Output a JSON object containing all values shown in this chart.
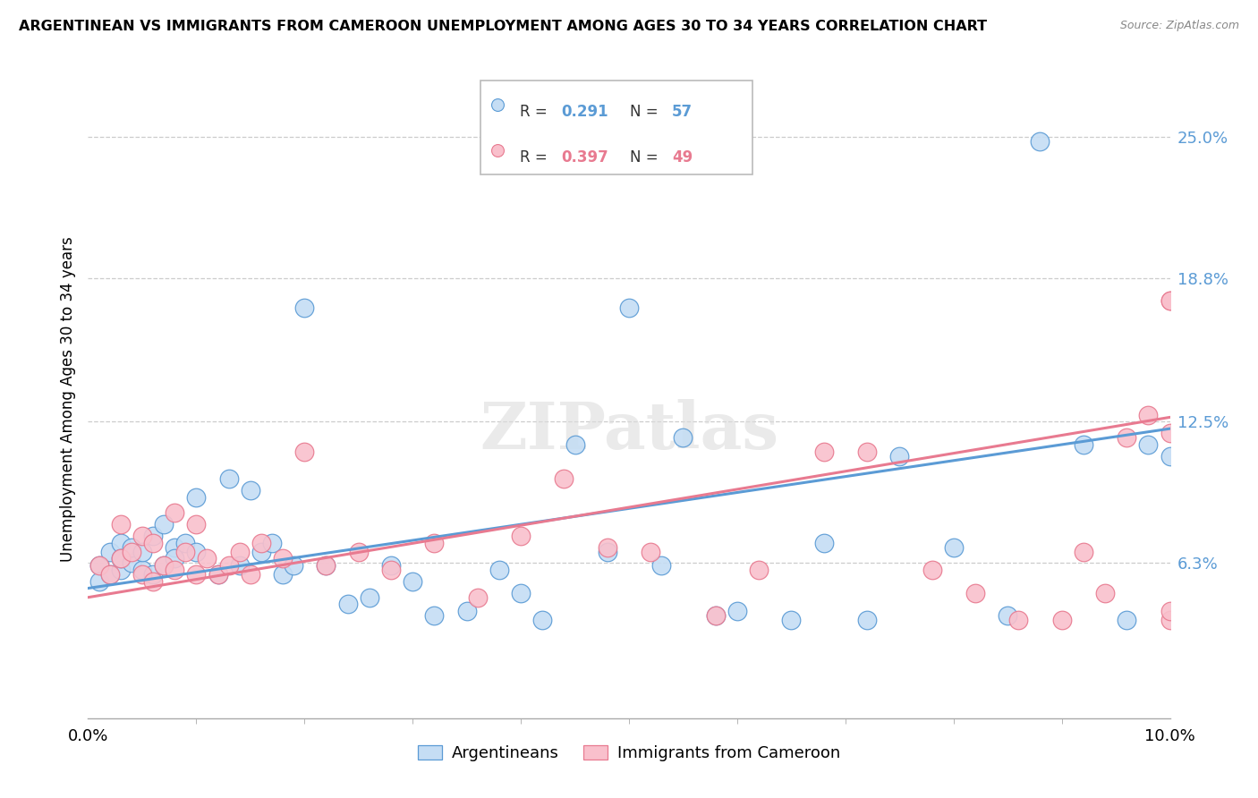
{
  "title": "ARGENTINEAN VS IMMIGRANTS FROM CAMEROON UNEMPLOYMENT AMONG AGES 30 TO 34 YEARS CORRELATION CHART",
  "source": "Source: ZipAtlas.com",
  "ylabel": "Unemployment Among Ages 30 to 34 years",
  "ytick_labels": [
    "6.3%",
    "12.5%",
    "18.8%",
    "25.0%"
  ],
  "ytick_values": [
    0.063,
    0.125,
    0.188,
    0.25
  ],
  "legend_r1": "0.291",
  "legend_n1": "57",
  "legend_r2": "0.397",
  "legend_n2": "49",
  "blue_fill": "#c5ddf4",
  "pink_fill": "#f9c0cc",
  "blue_edge": "#5b9bd5",
  "pink_edge": "#e87a90",
  "line_blue": "#5b9bd5",
  "line_pink": "#e87a90",
  "label1": "Argentineans",
  "label2": "Immigrants from Cameroon",
  "xlim": [
    0.0,
    0.1
  ],
  "ylim": [
    -0.005,
    0.275
  ],
  "trend_arg_x0": 0.0,
  "trend_arg_y0": 0.052,
  "trend_arg_x1": 0.1,
  "trend_arg_y1": 0.122,
  "trend_cam_x0": 0.0,
  "trend_cam_y0": 0.048,
  "trend_cam_x1": 0.1,
  "trend_cam_y1": 0.127,
  "arg_x": [
    0.001,
    0.001,
    0.002,
    0.002,
    0.003,
    0.003,
    0.003,
    0.004,
    0.004,
    0.005,
    0.005,
    0.006,
    0.006,
    0.007,
    0.007,
    0.008,
    0.008,
    0.009,
    0.01,
    0.01,
    0.012,
    0.013,
    0.014,
    0.015,
    0.016,
    0.017,
    0.018,
    0.019,
    0.02,
    0.022,
    0.024,
    0.026,
    0.028,
    0.03,
    0.032,
    0.035,
    0.038,
    0.04,
    0.042,
    0.045,
    0.048,
    0.05,
    0.053,
    0.055,
    0.058,
    0.06,
    0.065,
    0.068,
    0.072,
    0.075,
    0.08,
    0.085,
    0.088,
    0.092,
    0.096,
    0.098,
    0.1
  ],
  "arg_y": [
    0.062,
    0.055,
    0.068,
    0.058,
    0.072,
    0.06,
    0.065,
    0.063,
    0.07,
    0.06,
    0.068,
    0.075,
    0.058,
    0.08,
    0.062,
    0.07,
    0.065,
    0.072,
    0.068,
    0.092,
    0.058,
    0.1,
    0.062,
    0.095,
    0.068,
    0.072,
    0.058,
    0.062,
    0.175,
    0.062,
    0.045,
    0.048,
    0.062,
    0.055,
    0.04,
    0.042,
    0.06,
    0.05,
    0.038,
    0.115,
    0.068,
    0.175,
    0.062,
    0.118,
    0.04,
    0.042,
    0.038,
    0.072,
    0.038,
    0.11,
    0.07,
    0.04,
    0.248,
    0.115,
    0.038,
    0.115,
    0.11
  ],
  "cam_x": [
    0.001,
    0.002,
    0.003,
    0.003,
    0.004,
    0.005,
    0.005,
    0.006,
    0.006,
    0.007,
    0.008,
    0.008,
    0.009,
    0.01,
    0.01,
    0.011,
    0.012,
    0.013,
    0.014,
    0.015,
    0.016,
    0.018,
    0.02,
    0.022,
    0.025,
    0.028,
    0.032,
    0.036,
    0.04,
    0.044,
    0.048,
    0.052,
    0.058,
    0.062,
    0.068,
    0.072,
    0.078,
    0.082,
    0.086,
    0.09,
    0.092,
    0.094,
    0.096,
    0.098,
    0.1,
    0.1,
    0.1,
    0.1,
    0.1
  ],
  "cam_y": [
    0.062,
    0.058,
    0.08,
    0.065,
    0.068,
    0.075,
    0.058,
    0.072,
    0.055,
    0.062,
    0.085,
    0.06,
    0.068,
    0.058,
    0.08,
    0.065,
    0.058,
    0.062,
    0.068,
    0.058,
    0.072,
    0.065,
    0.112,
    0.062,
    0.068,
    0.06,
    0.072,
    0.048,
    0.075,
    0.1,
    0.07,
    0.068,
    0.04,
    0.06,
    0.112,
    0.112,
    0.06,
    0.05,
    0.038,
    0.038,
    0.068,
    0.05,
    0.118,
    0.128,
    0.178,
    0.12,
    0.038,
    0.042,
    0.178
  ]
}
